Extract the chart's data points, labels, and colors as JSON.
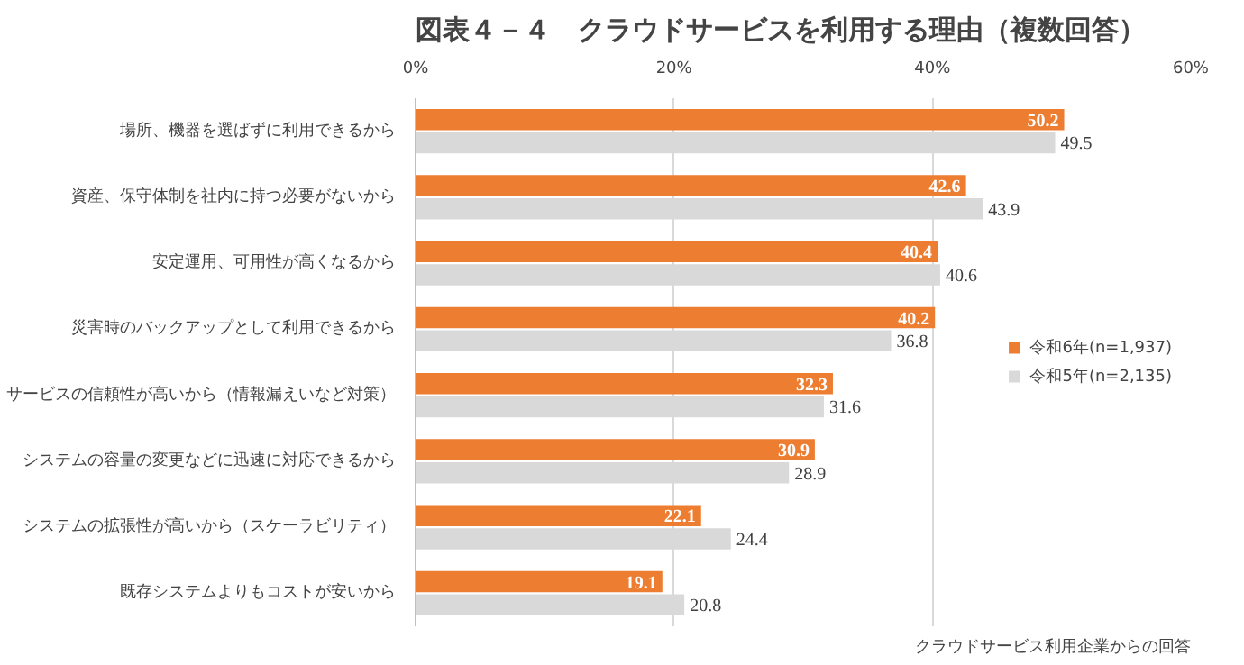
{
  "chart_data": {
    "type": "bar",
    "orientation": "horizontal",
    "title": "図表４－４　クラウドサービスを利用する理由（複数回答）",
    "categories": [
      "場所、機器を選ばずに利用できるから",
      "資産、保守体制を社内に持つ必要がないから",
      "安定運用、可用性が高くなるから",
      "災害時のバックアップとして利用できるから",
      "サービスの信頼性が高いから（情報漏えいなど対策）",
      "システムの容量の変更などに迅速に対応できるから",
      "システムの拡張性が高いから（スケーラビリティ）",
      "既存システムよりもコストが安いから"
    ],
    "series": [
      {
        "name": "令和6年(n=1,937)",
        "color": "#ed7d31",
        "values": [
          50.2,
          42.6,
          40.4,
          40.2,
          32.3,
          30.9,
          22.1,
          19.1
        ]
      },
      {
        "name": "令和5年(n=2,135)",
        "color": "#d9d9d9",
        "values": [
          49.5,
          43.9,
          40.6,
          36.8,
          31.6,
          28.9,
          24.4,
          20.8
        ]
      }
    ],
    "xlim": [
      0,
      60
    ],
    "xticks": [
      {
        "value": 0,
        "label": "0%"
      },
      {
        "value": 20,
        "label": "20%"
      },
      {
        "value": 40,
        "label": "40%"
      },
      {
        "value": 60,
        "label": "60%"
      }
    ],
    "grid": "x",
    "legend": "right",
    "data_labels": true,
    "annotations": [
      "クラウドサービス利用企業からの回答"
    ]
  }
}
